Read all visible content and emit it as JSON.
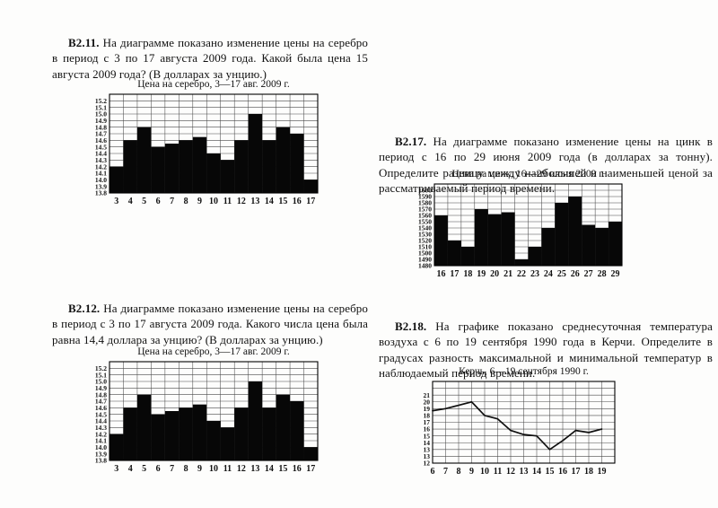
{
  "page": {
    "background": "#fdfdfc",
    "ink": "#111111",
    "bar_color": "#070707",
    "grid_color": "#4a4a4a"
  },
  "problems": [
    {
      "number": "В2.11.",
      "text": "На диаграмме показано изменение цены на серебро в период с 3 по 17 августа 2009 года. Какой была цена 15 августа 2009 года? (В долларах за унцию.)"
    },
    {
      "number": "В2.17.",
      "text": "На диаграмме показано изменение цены на цинк в период с 16 по 29 июня 2009 года (в долларах за тонну). Определите разницу между наибольшей и наименьшей ценой за рассматриваемый период времени."
    },
    {
      "number": "В2.12.",
      "text": "На диаграмме показано изменение цены на серебро в период с 3 по 17 августа 2009 года. Какого числа цена была равна 14,4 доллара за унцию? (В долларах за унцию.)"
    },
    {
      "number": "В2.18.",
      "text": "На графике показано среднесуточная температура воздуха с 6 по 19 сентября 1990 года в Керчи. Определите в градусах разность максимальной и минимальной температур в наблюдаемый период времени."
    }
  ],
  "chart_data": [
    {
      "type": "bar",
      "title": "Цена на серебро, 3—17 авг. 2009 г.",
      "categories": [
        "3",
        "4",
        "5",
        "6",
        "7",
        "8",
        "9",
        "10",
        "11",
        "12",
        "13",
        "14",
        "15",
        "16",
        "17"
      ],
      "values": [
        14.2,
        14.6,
        14.8,
        14.5,
        14.55,
        14.6,
        14.65,
        14.4,
        14.3,
        14.6,
        15.0,
        14.6,
        14.8,
        14.7,
        14.0
      ],
      "y_ticks_bottom_to_top": [
        "13.8",
        "13.9",
        "14.0",
        "14.1",
        "14.2",
        "14.3",
        "14.4",
        "14.5",
        "14.6",
        "14.7",
        "14.8",
        "14.9",
        "15.0",
        "15.1",
        "15.2"
      ],
      "y_base": 13.8,
      "y_step": 0.1,
      "ylim": [
        13.8,
        15.3
      ],
      "xlabel": "",
      "ylabel": "",
      "grid": true,
      "legend": "none"
    },
    {
      "type": "bar",
      "title": "Цена на цинк, 16—29 июня 2009 г.",
      "categories": [
        "16",
        "17",
        "18",
        "19",
        "20",
        "21",
        "22",
        "23",
        "24",
        "25",
        "26",
        "27",
        "28",
        "29"
      ],
      "values": [
        1560,
        1520,
        1510,
        1570,
        1562,
        1565,
        1490,
        1510,
        1540,
        1580,
        1590,
        1545,
        1540,
        1550
      ],
      "y_ticks_bottom_to_top": [
        "1480",
        "1490",
        "1500",
        "1510",
        "1520",
        "1530",
        "1540",
        "1550",
        "1560",
        "1570",
        "1580",
        "1590",
        "1600"
      ],
      "y_base": 1480,
      "y_step": 10,
      "ylim": [
        1480,
        1610
      ],
      "xlabel": "",
      "ylabel": "",
      "grid": true,
      "legend": "none"
    },
    {
      "type": "bar",
      "title": "Цена на серебро, 3—17 авг. 2009 г.",
      "categories": [
        "3",
        "4",
        "5",
        "6",
        "7",
        "8",
        "9",
        "10",
        "11",
        "12",
        "13",
        "14",
        "15",
        "16",
        "17"
      ],
      "values": [
        14.2,
        14.6,
        14.8,
        14.5,
        14.55,
        14.6,
        14.65,
        14.4,
        14.3,
        14.6,
        15.0,
        14.6,
        14.8,
        14.7,
        14.0
      ],
      "y_ticks_bottom_to_top": [
        "13.8",
        "13.9",
        "14.0",
        "14.1",
        "14.2",
        "14.3",
        "14.4",
        "14.5",
        "14.6",
        "14.7",
        "14.8",
        "14.9",
        "15.0",
        "15.1",
        "15.2"
      ],
      "y_base": 13.8,
      "y_step": 0.1,
      "ylim": [
        13.8,
        15.3
      ],
      "xlabel": "",
      "ylabel": "",
      "grid": true,
      "legend": "none"
    },
    {
      "type": "line",
      "title": "Керчь, 6—19 сентября 1990 г.",
      "categories": [
        "6",
        "7",
        "8",
        "9",
        "10",
        "11",
        "12",
        "13",
        "14",
        "15",
        "16",
        "17",
        "18",
        "19"
      ],
      "values": [
        18.7,
        19,
        19.5,
        20,
        18,
        17.5,
        15.8,
        15.2,
        15,
        13,
        14.3,
        15.8,
        15.5,
        16
      ],
      "y_ticks_bottom_to_top": [
        "12",
        "13",
        "13",
        "14",
        "15",
        "16",
        "17",
        "18",
        "19",
        "20",
        "21"
      ],
      "y_base": 12,
      "y_step": 1,
      "y_duplicate_at": 13,
      "ylim": [
        12,
        22
      ],
      "x_on_gridlines": true,
      "grid_cols": 14,
      "xlabel": "",
      "ylabel": "",
      "grid": true,
      "legend": "none"
    }
  ]
}
